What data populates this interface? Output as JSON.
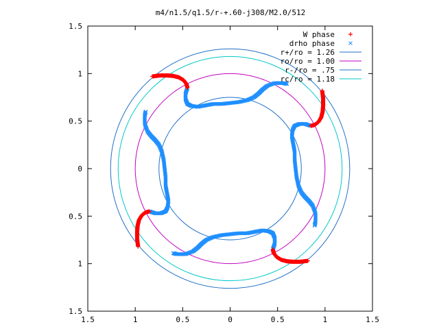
{
  "chart_data": {
    "type": "scatter",
    "title": "m4/n1.5/q1.5/r-+.60-j308/M2.0/512",
    "xlabel": "",
    "ylabel": "",
    "xlim": [
      -1.5,
      1.5
    ],
    "ylim": [
      -1.5,
      1.5
    ],
    "x_ticks": [
      "1.5",
      "1",
      "0.5",
      "0",
      "0.5",
      "1",
      "1.5"
    ],
    "y_ticks": [
      "1.5",
      "1",
      "0.5",
      "0",
      "0.5",
      "1",
      "1.5"
    ],
    "grid": false,
    "legend_position": "top-right",
    "legend": [
      {
        "label": "W phase",
        "marker": "+",
        "color": "#ff0000"
      },
      {
        "label": "drho phase",
        "marker": "x",
        "color": "#1f8fff"
      },
      {
        "label": "r+/ro = 1.26",
        "marker": "line",
        "color": "#1e6fc8"
      },
      {
        "label": "ro/ro = 1.00",
        "marker": "line",
        "color": "#c000c0"
      },
      {
        "label": "r-/ro = .75",
        "marker": "line",
        "color": "#1e6fc8"
      },
      {
        "label": "rc/ro = 1.18",
        "marker": "line",
        "color": "#00c8c8"
      }
    ],
    "circles": [
      {
        "name": "r+/ro",
        "radius": 1.26,
        "color": "#1e6fc8"
      },
      {
        "name": "ro/ro",
        "radius": 1.0,
        "color": "#c000c0"
      },
      {
        "name": "r-/ro",
        "radius": 0.75,
        "color": "#1e6fc8"
      },
      {
        "name": "rc/ro",
        "radius": 1.18,
        "color": "#00c8c8"
      }
    ],
    "series": [
      {
        "name": "W phase",
        "color": "#ff0000",
        "arms": [
          [
            [
              -0.82,
              0.97
            ],
            [
              -0.74,
              0.98
            ],
            [
              -0.66,
              0.98
            ],
            [
              -0.6,
              0.975
            ],
            [
              -0.54,
              0.96
            ],
            [
              -0.49,
              0.93
            ],
            [
              -0.46,
              0.89
            ],
            [
              -0.45,
              0.85
            ]
          ],
          [
            [
              0.97,
              0.82
            ],
            [
              0.98,
              0.74
            ],
            [
              0.98,
              0.66
            ],
            [
              0.975,
              0.6
            ],
            [
              0.96,
              0.54
            ],
            [
              0.93,
              0.49
            ],
            [
              0.89,
              0.46
            ],
            [
              0.85,
              0.45
            ]
          ],
          [
            [
              0.82,
              -0.97
            ],
            [
              0.74,
              -0.98
            ],
            [
              0.66,
              -0.98
            ],
            [
              0.6,
              -0.975
            ],
            [
              0.54,
              -0.96
            ],
            [
              0.49,
              -0.93
            ],
            [
              0.46,
              -0.89
            ],
            [
              0.45,
              -0.85
            ]
          ],
          [
            [
              -0.97,
              -0.82
            ],
            [
              -0.98,
              -0.74
            ],
            [
              -0.98,
              -0.66
            ],
            [
              -0.975,
              -0.6
            ],
            [
              -0.96,
              -0.54
            ],
            [
              -0.93,
              -0.49
            ],
            [
              -0.89,
              -0.46
            ],
            [
              -0.85,
              -0.45
            ]
          ]
        ]
      },
      {
        "name": "drho phase",
        "color": "#1f8fff",
        "arms": [
          [
            [
              -0.45,
              0.85
            ],
            [
              -0.47,
              0.79
            ],
            [
              -0.47,
              0.73
            ],
            [
              -0.45,
              0.68
            ],
            [
              -0.41,
              0.66
            ],
            [
              -0.34,
              0.65
            ],
            [
              -0.26,
              0.665
            ],
            [
              -0.18,
              0.68
            ],
            [
              -0.09,
              0.68
            ],
            [
              0.0,
              0.69
            ],
            [
              0.09,
              0.7
            ],
            [
              0.18,
              0.72
            ],
            [
              0.25,
              0.75
            ],
            [
              0.3,
              0.79
            ],
            [
              0.34,
              0.83
            ],
            [
              0.39,
              0.87
            ],
            [
              0.47,
              0.9
            ],
            [
              0.56,
              0.9
            ],
            [
              0.6,
              0.89
            ]
          ],
          [
            [
              0.85,
              0.45
            ],
            [
              0.79,
              0.47
            ],
            [
              0.73,
              0.47
            ],
            [
              0.68,
              0.45
            ],
            [
              0.66,
              0.41
            ],
            [
              0.65,
              0.34
            ],
            [
              0.665,
              0.26
            ],
            [
              0.68,
              0.18
            ],
            [
              0.68,
              0.09
            ],
            [
              0.69,
              0.0
            ],
            [
              0.7,
              -0.09
            ],
            [
              0.72,
              -0.18
            ],
            [
              0.75,
              -0.25
            ],
            [
              0.79,
              -0.3
            ],
            [
              0.83,
              -0.34
            ],
            [
              0.87,
              -0.39
            ],
            [
              0.9,
              -0.47
            ],
            [
              0.9,
              -0.56
            ],
            [
              0.89,
              -0.6
            ]
          ],
          [
            [
              0.45,
              -0.85
            ],
            [
              0.47,
              -0.79
            ],
            [
              0.47,
              -0.73
            ],
            [
              0.45,
              -0.68
            ],
            [
              0.41,
              -0.66
            ],
            [
              0.34,
              -0.65
            ],
            [
              0.26,
              -0.665
            ],
            [
              0.18,
              -0.68
            ],
            [
              0.09,
              -0.68
            ],
            [
              0.0,
              -0.69
            ],
            [
              -0.09,
              -0.7
            ],
            [
              -0.18,
              -0.72
            ],
            [
              -0.25,
              -0.75
            ],
            [
              -0.3,
              -0.79
            ],
            [
              -0.34,
              -0.83
            ],
            [
              -0.39,
              -0.87
            ],
            [
              -0.47,
              -0.9
            ],
            [
              -0.56,
              -0.9
            ],
            [
              -0.6,
              -0.89
            ]
          ],
          [
            [
              -0.85,
              -0.45
            ],
            [
              -0.79,
              -0.47
            ],
            [
              -0.73,
              -0.47
            ],
            [
              -0.68,
              -0.45
            ],
            [
              -0.66,
              -0.41
            ],
            [
              -0.65,
              -0.34
            ],
            [
              -0.665,
              -0.26
            ],
            [
              -0.68,
              -0.18
            ],
            [
              -0.68,
              -0.09
            ],
            [
              -0.69,
              0.0
            ],
            [
              -0.7,
              0.09
            ],
            [
              -0.72,
              0.18
            ],
            [
              -0.75,
              0.25
            ],
            [
              -0.79,
              0.3
            ],
            [
              -0.83,
              0.34
            ],
            [
              -0.87,
              0.39
            ],
            [
              -0.9,
              0.47
            ],
            [
              -0.9,
              0.56
            ],
            [
              -0.89,
              0.6
            ]
          ]
        ]
      }
    ]
  }
}
